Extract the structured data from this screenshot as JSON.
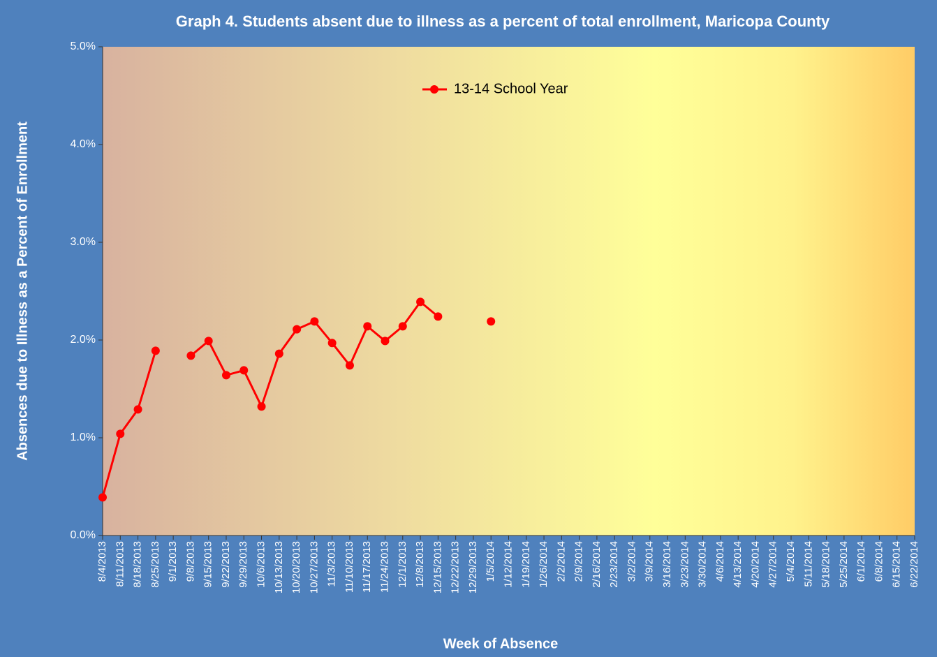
{
  "chart_data": {
    "type": "line",
    "title": "Graph 4. Students absent due to illness as a percent of total enrollment, Maricopa County",
    "x_label": "Week of Absence",
    "y_label": "Absences due to Illness as a Percent of Enrollment",
    "categories": [
      "8/4/2013",
      "8/11/2013",
      "8/18/2013",
      "8/25/2013",
      "9/1/2013",
      "9/8/2013",
      "9/15/2013",
      "9/22/2013",
      "9/29/2013",
      "10/6/2013",
      "10/13/2013",
      "10/20/2013",
      "10/27/2013",
      "11/3/2013",
      "11/10/2013",
      "11/17/2013",
      "11/24/2013",
      "12/1/2013",
      "12/8/2013",
      "12/15/2013",
      "12/22/2013",
      "12/29/2013",
      "1/5/2014",
      "1/12/2014",
      "1/19/2014",
      "1/26/2014",
      "2/2/2014",
      "2/9/2014",
      "2/16/2014",
      "2/23/2014",
      "3/2/2014",
      "3/9/2014",
      "3/16/2014",
      "3/23/2014",
      "3/30/2014",
      "4/6/2014",
      "4/13/2014",
      "4/20/2014",
      "4/27/2014",
      "5/4/2014",
      "5/11/2014",
      "5/18/2014",
      "5/25/2014",
      "6/1/2014",
      "6/8/2014",
      "6/15/2014",
      "6/22/2014"
    ],
    "series": [
      {
        "name": "13-14 School Year",
        "color": "#ff0000",
        "values": [
          0.39,
          1.04,
          1.29,
          1.89,
          null,
          1.84,
          1.99,
          1.64,
          1.69,
          1.32,
          1.86,
          2.11,
          2.19,
          1.97,
          1.74,
          2.14,
          1.99,
          2.14,
          2.39,
          2.24,
          null,
          null,
          2.19,
          null,
          null,
          null,
          null,
          null,
          null,
          null,
          null,
          null,
          null,
          null,
          null,
          null,
          null,
          null,
          null,
          null,
          null,
          null,
          null,
          null,
          null,
          null,
          null
        ]
      }
    ],
    "ylim": [
      0,
      5
    ],
    "yticks": [
      {
        "value": 0,
        "label": "0.0%"
      },
      {
        "value": 1,
        "label": "1.0%"
      },
      {
        "value": 2,
        "label": "2.0%"
      },
      {
        "value": 3,
        "label": "3.0%"
      },
      {
        "value": 4,
        "label": "4.0%"
      },
      {
        "value": 5,
        "label": "5.0%"
      }
    ],
    "legend": "top-center"
  }
}
